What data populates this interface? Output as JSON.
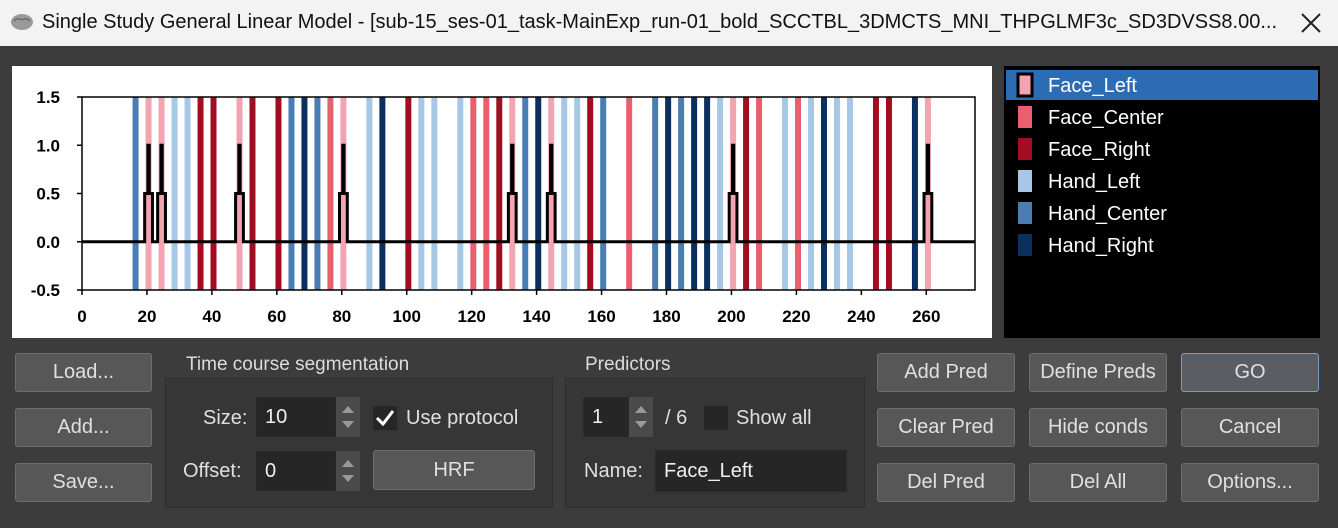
{
  "window": {
    "title": "Single Study General Linear Model - [sub-15_ses-01_task-MainExp_run-01_bold_SCCTBL_3DMCTS_MNI_THPGLMF3c_SD3DVSS8.00..."
  },
  "chart_data": {
    "type": "event-plot",
    "xlim": [
      0,
      275
    ],
    "ylim": [
      -0.5,
      1.5
    ],
    "xticks": [
      0,
      20,
      40,
      60,
      80,
      100,
      120,
      140,
      160,
      180,
      200,
      220,
      240,
      260
    ],
    "yticks": [
      1.5,
      {
        "value": 1,
        "label": "1.0"
      },
      0.5,
      {
        "value": 0,
        "label": "0.0"
      },
      -0.5
    ],
    "series": [
      {
        "name": "Face_Left",
        "color": "#f4a3b1",
        "x": [
          20.5,
          24.5,
          48.5,
          80.5,
          132.5,
          144.5,
          200.5,
          260.5
        ]
      },
      {
        "name": "Face_Center",
        "color": "#e8606e",
        "x": [
          76.5,
          120.5,
          124.5,
          168.5,
          208.5,
          220.5
        ]
      },
      {
        "name": "Face_Right",
        "color": "#a30d22",
        "x": [
          36.5,
          40.5,
          52.5,
          60.5,
          100.5,
          128.5,
          156.5,
          204.5,
          244.5,
          248.5
        ]
      },
      {
        "name": "Hand_Left",
        "color": "#a7c7e7",
        "x": [
          28.5,
          32.5,
          88.5,
          104.5,
          108.5,
          116.5,
          148.5,
          152.5,
          196.5,
          216.5,
          224.5,
          232.5,
          236.5
        ]
      },
      {
        "name": "Hand_Center",
        "color": "#4a7db3",
        "x": [
          16.5,
          64.5,
          72.5,
          136.5,
          160.5,
          176.5,
          184.5
        ]
      },
      {
        "name": "Hand_Right",
        "color": "#0b2f5e",
        "x": [
          68.5,
          92.5,
          140.5,
          180.5,
          188.5,
          192.5,
          228.5,
          256.5
        ]
      }
    ],
    "predictor": {
      "color": "#000000",
      "x": [
        0,
        19.3,
        19.3,
        20.3,
        20.3,
        20.7,
        20.7,
        21.7,
        21.7,
        23.3,
        23.3,
        24.3,
        24.3,
        24.7,
        24.7,
        25.7,
        25.7,
        47.3,
        47.3,
        48.3,
        48.3,
        48.7,
        48.7,
        49.7,
        49.7,
        79.3,
        79.3,
        80.3,
        80.3,
        80.7,
        80.7,
        81.7,
        81.7,
        131.3,
        131.3,
        132.3,
        132.3,
        132.7,
        132.7,
        133.7,
        133.7,
        143.3,
        143.3,
        144.3,
        144.3,
        144.7,
        144.7,
        145.7,
        145.7,
        199.3,
        199.3,
        200.3,
        200.3,
        200.7,
        200.7,
        201.7,
        201.7,
        259.3,
        259.3,
        260.3,
        260.3,
        260.7,
        260.7,
        261.7,
        261.7,
        275
      ],
      "y": [
        0,
        0,
        0.5,
        0.5,
        1,
        1,
        0.5,
        0.5,
        0,
        0,
        0.5,
        0.5,
        1,
        1,
        0.5,
        0.5,
        0,
        0,
        0.5,
        0.5,
        1,
        1,
        0.5,
        0.5,
        0,
        0,
        0.5,
        0.5,
        1,
        1,
        0.5,
        0.5,
        0,
        0,
        0.5,
        0.5,
        1,
        1,
        0.5,
        0.5,
        0,
        0,
        0.5,
        0.5,
        1,
        1,
        0.5,
        0.5,
        0,
        0,
        0.5,
        0.5,
        1,
        1,
        0.5,
        0.5,
        0,
        0,
        0.5,
        0.5,
        1,
        1,
        0.5,
        0.5,
        0,
        0
      ]
    },
    "selected": 0
  },
  "buttons": {
    "load": "Load...",
    "add": "Add...",
    "save": "Save...",
    "add_pred": "Add Pred",
    "define_preds": "Define Preds",
    "go": "GO",
    "clear_pred": "Clear Pred",
    "hide_conds": "Hide conds",
    "cancel": "Cancel",
    "del_pred": "Del Pred",
    "del_all": "Del All",
    "options": "Options..."
  },
  "segmentation": {
    "title": "Time course segmentation",
    "size_label": "Size:",
    "size": 10,
    "use_protocol": "Use protocol",
    "use_protocol_checked": true,
    "offset_label": "Offset:",
    "offset": 0,
    "hrf": "HRF"
  },
  "predictors": {
    "title": "Predictors",
    "current": 1,
    "total": "/ 6",
    "show_all": "Show all",
    "show_all_checked": false,
    "name_label": "Name:",
    "name": "Face_Left"
  }
}
